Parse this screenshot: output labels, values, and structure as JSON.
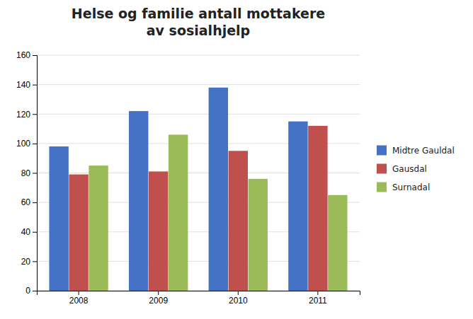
{
  "chart_data": {
    "type": "bar",
    "title": "Helse og familie antall mottakere\nav sosialhjelp",
    "categories": [
      "2008",
      "2009",
      "2010",
      "2011"
    ],
    "series": [
      {
        "name": "Midtre Gauldal",
        "color": "#4472C4",
        "values": [
          98,
          122,
          138,
          115
        ]
      },
      {
        "name": "Gausdal",
        "color": "#C0504D",
        "values": [
          79,
          81,
          95,
          112
        ]
      },
      {
        "name": "Surnadal",
        "color": "#9BBB59",
        "values": [
          85,
          106,
          76,
          65
        ]
      }
    ],
    "ylim": [
      0,
      160
    ],
    "yticks": [
      0,
      20,
      40,
      60,
      80,
      100,
      120,
      140,
      160
    ],
    "grid": true,
    "legend": "right"
  }
}
